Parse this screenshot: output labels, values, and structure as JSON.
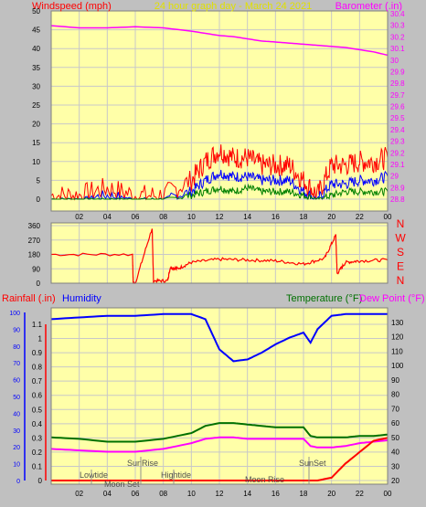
{
  "header": {
    "left_title": "Windspeed (mph)",
    "center_title": "24 hour graph day - March 24 2021",
    "right_title": "Barometer (.in)"
  },
  "colors": {
    "plot_bg": "#ffffa8",
    "frame_bg": "#c0c0c0",
    "grid": "#c8c8c8",
    "wind_speed": "#ff0000",
    "wind_avg": "#0000ff",
    "wind_low": "#008000",
    "barometer": "#ff00ff",
    "direction": "#ff0000",
    "humidity": "#0000ff",
    "temperature": "#007000",
    "dewpoint": "#ff00ff",
    "rainfall": "#ff0000",
    "annotations": "#606060"
  },
  "panels": {
    "wind": {
      "left_ticks": [
        "50",
        "45",
        "40",
        "35",
        "30",
        "25",
        "20",
        "15",
        "10",
        "5",
        "0"
      ],
      "right_ticks": [
        "30.4",
        "30.3",
        "30.2",
        "30.1",
        "30",
        "29.9",
        "29.8",
        "29.7",
        "29.6",
        "29.5",
        "29.4",
        "29.3",
        "29.2",
        "29.1",
        "29",
        "28.9",
        "28.8"
      ],
      "x_ticks": [
        "02",
        "04",
        "06",
        "08",
        "10",
        "12",
        "14",
        "16",
        "18",
        "20",
        "22",
        "00"
      ]
    },
    "direction": {
      "left_ticks": [
        "360",
        "270",
        "180",
        "90",
        "0"
      ],
      "compass": [
        "N",
        "W",
        "S",
        "E",
        "N"
      ]
    },
    "weather": {
      "title_rain": "Rainfall (.in)",
      "title_humidity": "Humidity",
      "title_temp": "Temperature (°F)",
      "title_dew": "Dew Point (°F)",
      "left_pct_ticks": [
        "100",
        "90",
        "80",
        "70",
        "60",
        "50",
        "40",
        "30",
        "20",
        "10",
        "0"
      ],
      "left_rain_ticks": [
        "1.1",
        "1",
        "0.9",
        "0.8",
        "0.7",
        "0.6",
        "0.5",
        "0.4",
        "0.3",
        "0.2",
        "0.1",
        "0"
      ],
      "right_ticks": [
        "130",
        "120",
        "110",
        "100",
        "90",
        "80",
        "70",
        "60",
        "50",
        "40",
        "30",
        "20"
      ],
      "x_ticks": [
        "02",
        "04",
        "06",
        "08",
        "10",
        "12",
        "14",
        "16",
        "18",
        "20",
        "22",
        "00"
      ],
      "annotations": [
        "Lowtide",
        "Moon Set",
        "SunRise",
        "Hightide",
        "Moon Rise",
        "SunSet"
      ]
    }
  },
  "chart_data": [
    {
      "type": "line",
      "title": "Windspeed (mph)",
      "xlabel": "hour",
      "ylabel": "Windspeed (mph)",
      "ylim": [
        0,
        50
      ],
      "y2label": "Barometer (.in)",
      "y2lim": [
        28.7,
        30.4
      ],
      "x": [
        0,
        2,
        4,
        6,
        8,
        10,
        11,
        12,
        13,
        14,
        15,
        16,
        17,
        18,
        19,
        20,
        21,
        22,
        23,
        24
      ],
      "series": [
        {
          "name": "Barometer (.in)",
          "axis": "right",
          "values": [
            30.29,
            30.27,
            30.27,
            30.28,
            30.27,
            30.24,
            30.22,
            30.2,
            30.19,
            30.17,
            30.15,
            30.14,
            30.13,
            30.12,
            30.11,
            30.1,
            30.09,
            30.07,
            30.05,
            30.02
          ]
        },
        {
          "name": "gust",
          "values": [
            1,
            1,
            3,
            1,
            1,
            5,
            10,
            13,
            11,
            11,
            9,
            9,
            9,
            5,
            1,
            9,
            9,
            10,
            10,
            11
          ]
        },
        {
          "name": "average",
          "values": [
            0,
            0,
            1,
            0,
            0,
            2,
            5,
            7,
            6,
            6,
            5,
            5,
            5,
            2,
            0,
            4,
            4,
            5,
            5,
            6
          ]
        },
        {
          "name": "low",
          "values": [
            0,
            0,
            0,
            0,
            0,
            1,
            2,
            3,
            2,
            3,
            2,
            2,
            2,
            1,
            0,
            1,
            2,
            2,
            2,
            2
          ]
        }
      ]
    },
    {
      "type": "line",
      "title": "",
      "ylabel": "direction",
      "ylim": [
        0,
        360
      ],
      "x": [
        0,
        5.8,
        5.85,
        6.0,
        7.2,
        7.3,
        8.3,
        8.5,
        9.0,
        10.0,
        12.0,
        14.0,
        16.0,
        18.0,
        19.5,
        20.3,
        20.4,
        21.0,
        22.0,
        24.0
      ],
      "series": [
        {
          "name": "direction",
          "values": [
            180,
            180,
            0,
            0,
            345,
            15,
            15,
            100,
            90,
            130,
            150,
            145,
            140,
            120,
            155,
            300,
            60,
            130,
            140,
            145
          ]
        }
      ]
    },
    {
      "type": "line",
      "title": "",
      "xlabel": "hour",
      "ylabel": "Humidity (%)",
      "ylim": [
        0,
        100
      ],
      "y2label": "Temperature (°F)",
      "y2lim": [
        20,
        130
      ],
      "x": [
        0,
        2,
        4,
        6,
        8,
        10,
        11,
        12,
        13,
        14,
        15,
        16,
        17,
        18,
        18.5,
        19,
        20,
        21,
        22,
        23,
        24
      ],
      "series": [
        {
          "name": "Humidity",
          "values": [
            96,
            97,
            98,
            98,
            99,
            99,
            96,
            78,
            71,
            72,
            76,
            81,
            85,
            88,
            82,
            90,
            98,
            99,
            99,
            99,
            99
          ]
        },
        {
          "name": "Temperature",
          "values": [
            50,
            49,
            47,
            47,
            49,
            53,
            58,
            60,
            60,
            59,
            58,
            57,
            57,
            57,
            51,
            50,
            50,
            50,
            51,
            51,
            52
          ]
        },
        {
          "name": "Dew Point",
          "values": [
            42,
            41,
            40,
            40,
            42,
            46,
            49,
            50,
            50,
            49,
            49,
            49,
            49,
            49,
            44,
            43,
            43,
            44,
            46,
            47,
            48
          ]
        },
        {
          "name": "Rainfall",
          "values": [
            0,
            0,
            0,
            0,
            0,
            0,
            0,
            0,
            0,
            0,
            0,
            0,
            0,
            0,
            0,
            0,
            0.02,
            0.12,
            0.2,
            0.28,
            0.3
          ]
        }
      ]
    }
  ]
}
